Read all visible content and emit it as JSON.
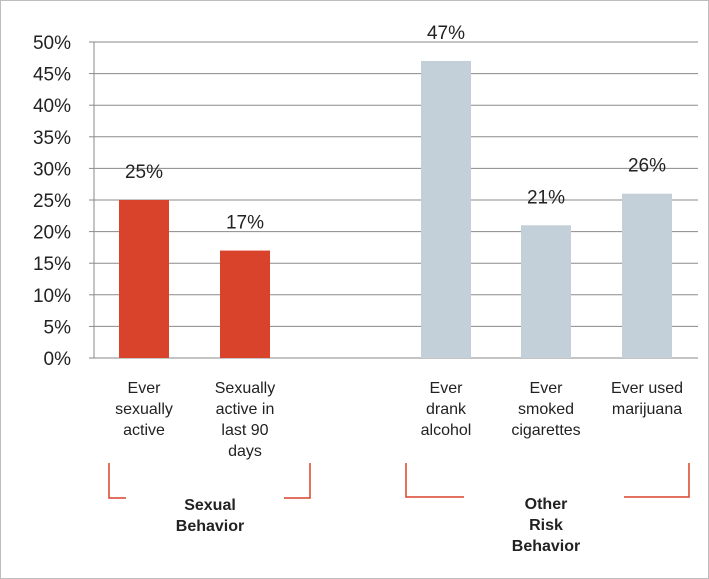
{
  "chart_data": {
    "type": "bar",
    "title": "",
    "xlabel": "",
    "ylabel": "",
    "ylim": [
      0,
      50
    ],
    "y_ticks": [
      "0%",
      "5%",
      "10%",
      "15%",
      "20%",
      "25%",
      "30%",
      "35%",
      "40%",
      "45%",
      "50%"
    ],
    "grid": true,
    "categories": [
      "Ever sexually active",
      "Sexually active in last 90 days",
      "Ever drank alcohol",
      "Ever smoked cigarettes",
      "Ever used marijuana"
    ],
    "category_lines": [
      [
        "Ever",
        "sexually",
        "active"
      ],
      [
        "Sexually",
        "active in",
        "last 90",
        "days"
      ],
      [
        "Ever",
        "drank",
        "alcohol"
      ],
      [
        "Ever",
        "smoked",
        "cigarettes"
      ],
      [
        "Ever used",
        "marijuana"
      ]
    ],
    "values": [
      25,
      17,
      47,
      21,
      26
    ],
    "data_labels": [
      "25%",
      "17%",
      "47%",
      "21%",
      "26%"
    ],
    "bar_colors": [
      "#d9422b",
      "#d9422b",
      "#c3d0d9",
      "#c3d0d9",
      "#c3d0d9"
    ],
    "groups": [
      {
        "label_lines": [
          "Sexual",
          "Behavior"
        ],
        "categories": [
          0,
          1
        ]
      },
      {
        "label_lines": [
          "Other",
          "Risk",
          "Behavior"
        ],
        "categories": [
          2,
          3,
          4
        ]
      }
    ],
    "bracket_color": "#d9422b"
  }
}
